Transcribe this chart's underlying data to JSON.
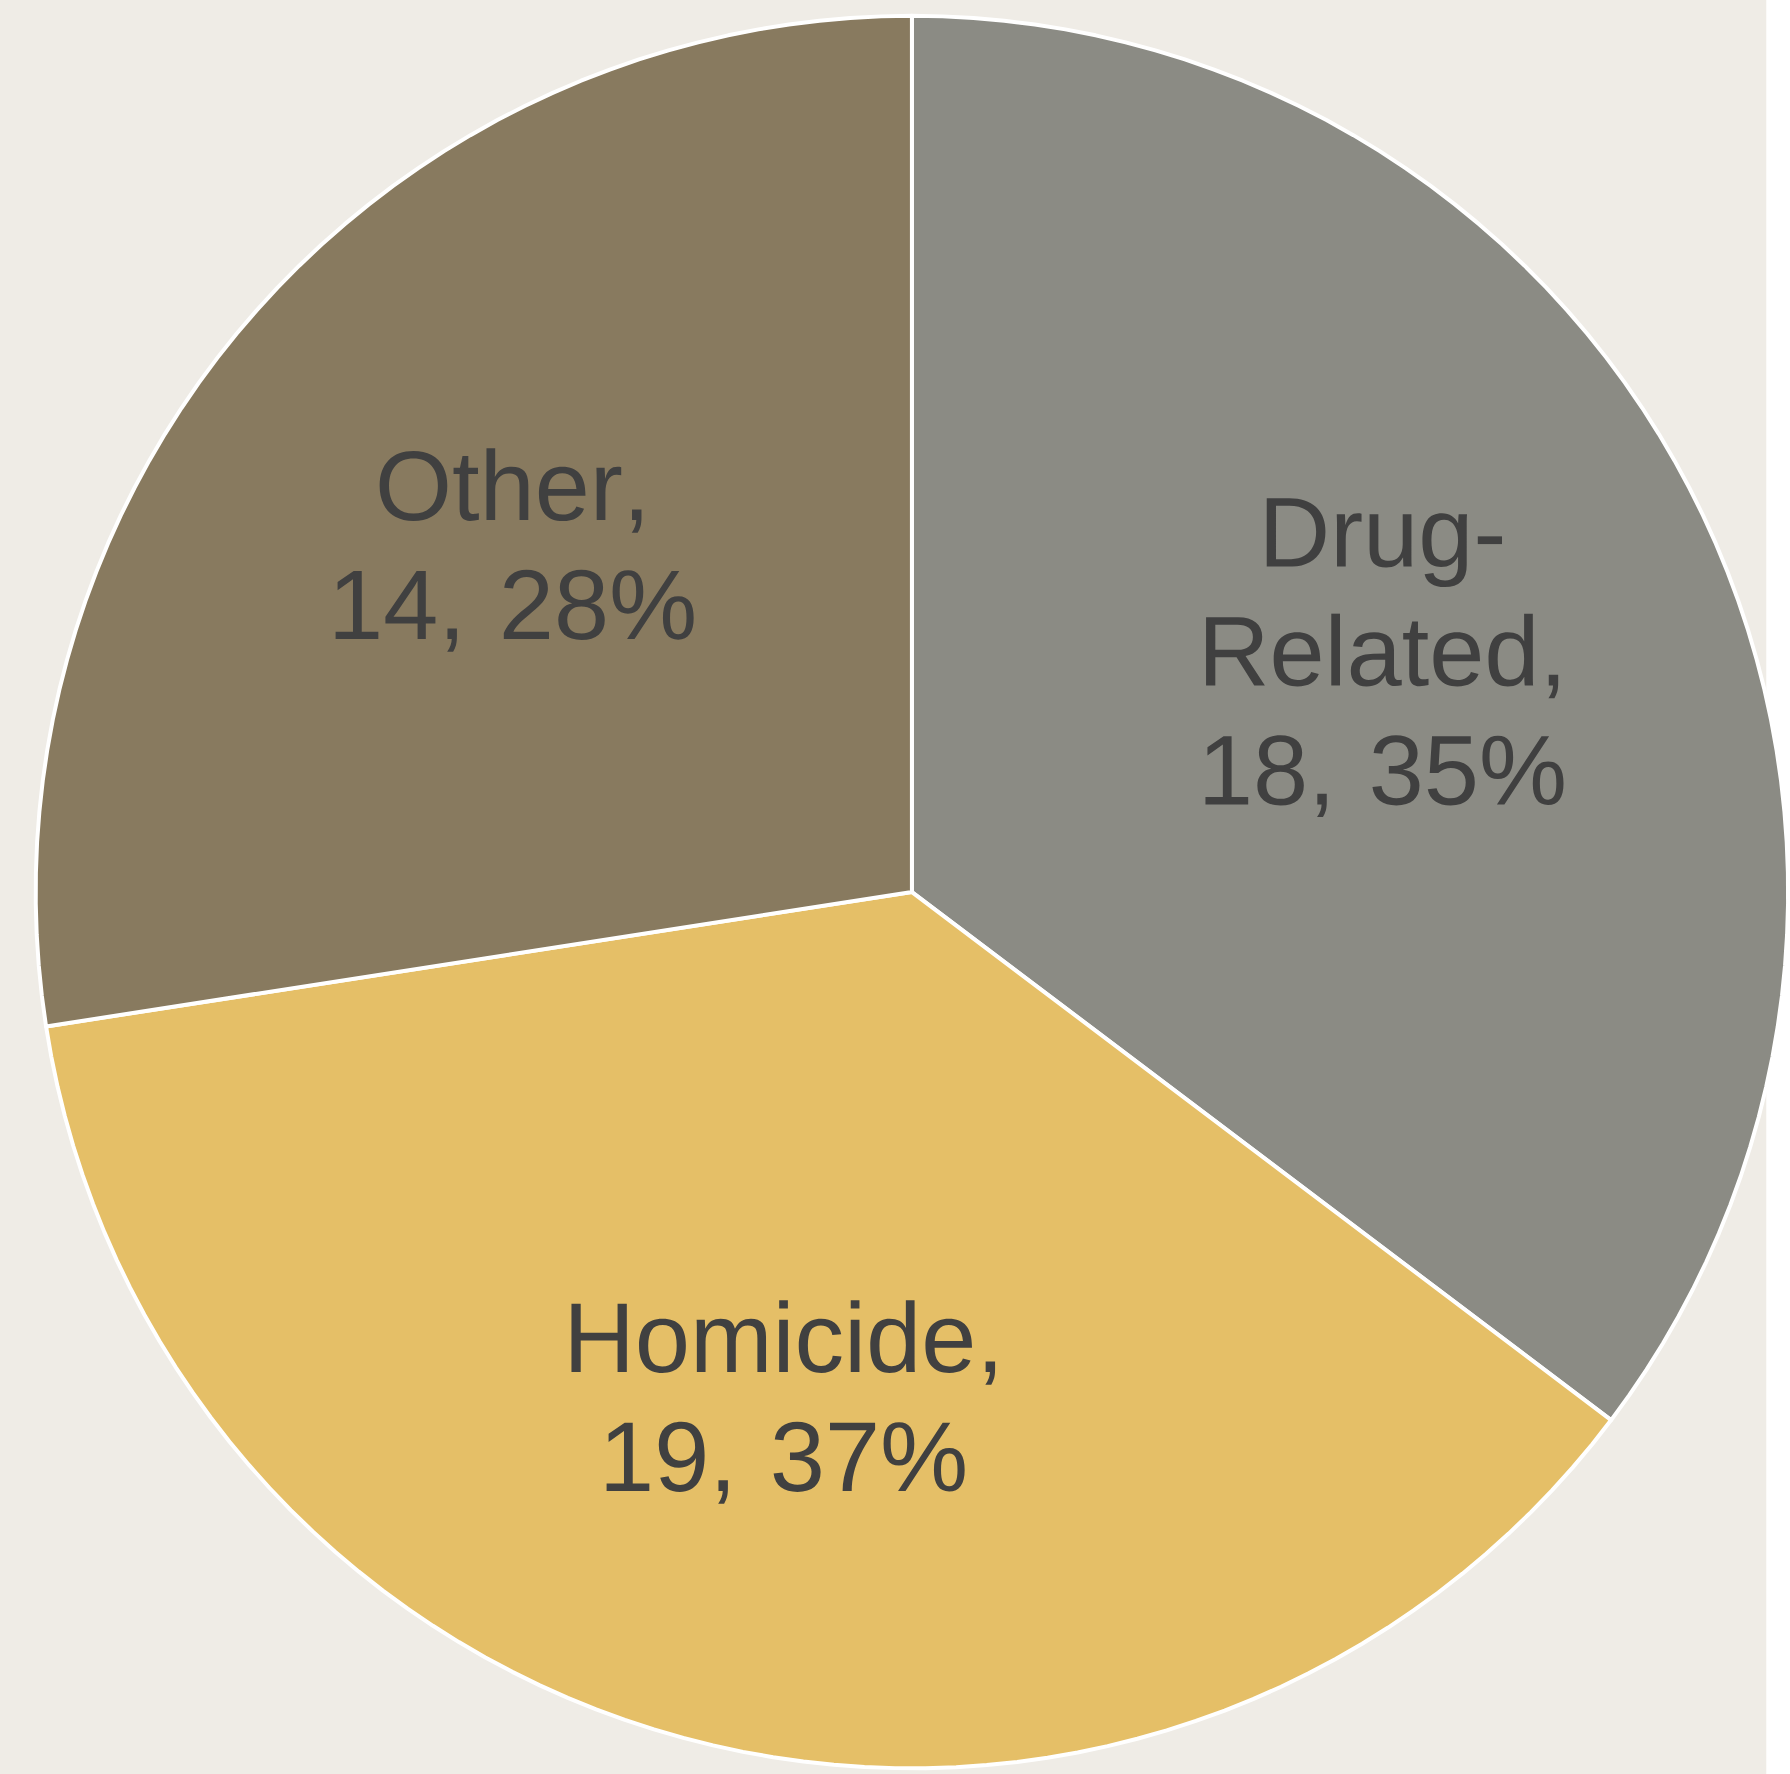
{
  "chart_data": {
    "type": "pie",
    "categories": [
      "Drug-Related",
      "Homicide",
      "Other"
    ],
    "values": [
      18,
      19,
      14
    ],
    "value_labels": [
      ", 18, 35%",
      ", 19, 37%",
      ", 14, 28%"
    ],
    "colors": [
      "#8b8b84",
      "#e5bf67",
      "#887a5f"
    ],
    "data_labels": true
  }
}
